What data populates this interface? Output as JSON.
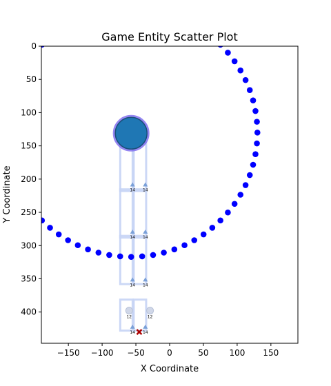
{
  "chart_data": {
    "type": "scatter",
    "title": "Game Entity Scatter Plot",
    "xlabel": "X Coordinate",
    "ylabel": "Y Coordinate",
    "xlim": [
      -190,
      190
    ],
    "ylim": [
      447,
      0
    ],
    "x_ticks": [
      -150,
      -100,
      -50,
      0,
      50,
      100,
      150
    ],
    "y_ticks": [
      0,
      50,
      100,
      150,
      200,
      250,
      300,
      350,
      400
    ],
    "grid": false,
    "colors": {
      "points": "#0000ff",
      "big_marker": "#1f77b4",
      "big_ring": "#7b68ee",
      "blocks": "#c6d4f5",
      "small_markers": "#7aa0d8",
      "target": "#aa0000"
    },
    "circle_points": {
      "center": [
        -57,
        130
      ],
      "radius": 187,
      "count": 72
    },
    "big_marker": {
      "x": -57,
      "y": 131
    },
    "target": {
      "x": -45,
      "y": 430,
      "symbol": "x"
    },
    "blocks": [
      {
        "x": -64,
        "y": 218,
        "w": 20,
        "h": 70
      },
      {
        "x": -44,
        "y": 218,
        "w": 20,
        "h": 70
      },
      {
        "x": -64,
        "y": 288,
        "w": 20,
        "h": 70
      },
      {
        "x": -44,
        "y": 288,
        "w": 20,
        "h": 70
      },
      {
        "x": -64,
        "y": 358,
        "w": 20,
        "h": 70
      },
      {
        "x": -44,
        "y": 358,
        "w": 20,
        "h": 70
      },
      {
        "x": -64,
        "y": 428,
        "w": 20,
        "h": 45
      },
      {
        "x": -44,
        "y": 428,
        "w": 20,
        "h": 45
      }
    ],
    "small_markers": [
      {
        "x": -55,
        "y": 209,
        "label": "14",
        "shape": "triangle"
      },
      {
        "x": -36,
        "y": 209,
        "label": "14",
        "shape": "triangle"
      },
      {
        "x": -55,
        "y": 280,
        "label": "14",
        "shape": "triangle"
      },
      {
        "x": -36,
        "y": 280,
        "label": "14",
        "shape": "triangle"
      },
      {
        "x": -55,
        "y": 352,
        "label": "14",
        "shape": "triangle"
      },
      {
        "x": -36,
        "y": 352,
        "label": "14",
        "shape": "triangle"
      },
      {
        "x": -60,
        "y": 400,
        "label": "12",
        "shape": "circle"
      },
      {
        "x": -29,
        "y": 400,
        "label": "12",
        "shape": "circle"
      },
      {
        "x": -55,
        "y": 423,
        "label": "14",
        "shape": "triangle"
      },
      {
        "x": -36,
        "y": 423,
        "label": "14",
        "shape": "triangle"
      }
    ]
  }
}
